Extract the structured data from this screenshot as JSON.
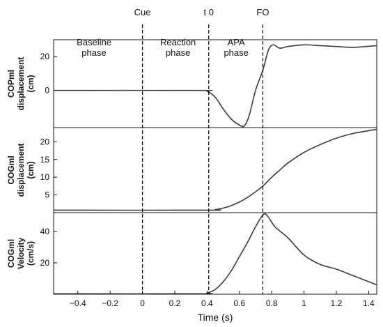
{
  "chart_data": {
    "type": "line",
    "xlabel": "Time (s)",
    "xlim": [
      -0.55,
      1.45
    ],
    "xticks": [
      -0.4,
      -0.2,
      0,
      0.2,
      0.4,
      0.6,
      0.8,
      1,
      1.2,
      1.4
    ],
    "xtick_labels": [
      "−0.4",
      "−0.2",
      "0",
      "0.2",
      "0.4",
      "0.6",
      "0.8",
      "1",
      "1.2",
      "1.4"
    ],
    "events": [
      {
        "label": "Cue",
        "x": 0
      },
      {
        "label": "t 0",
        "x": 0.41
      },
      {
        "label": "FO",
        "x": 0.745
      }
    ],
    "phases": [
      {
        "lines": [
          "Baseline",
          "phase"
        ],
        "x": -0.3
      },
      {
        "lines": [
          "Reaction",
          "phase"
        ],
        "x": 0.22
      },
      {
        "lines": [
          "APA",
          "phase"
        ],
        "x": 0.58
      }
    ],
    "panels": [
      {
        "ylabel": [
          "COPml",
          "displacement",
          "(cm)"
        ],
        "ylim": [
          -22,
          30
        ],
        "yticks": [
          0,
          20
        ],
        "x": [
          -0.55,
          0.35,
          0.4,
          0.45,
          0.5,
          0.55,
          0.6,
          0.63,
          0.66,
          0.7,
          0.745,
          0.78,
          0.81,
          0.85,
          0.9,
          1.0,
          1.1,
          1.2,
          1.3,
          1.45
        ],
        "y": [
          0,
          0,
          -0.5,
          -4,
          -11,
          -17,
          -20.5,
          -21,
          -15,
          0,
          12,
          24,
          27,
          25,
          26,
          27,
          26.5,
          26,
          25.5,
          26.5
        ]
      },
      {
        "ylabel": [
          "COGml",
          "displacement",
          "(cm)"
        ],
        "ylim": [
          0,
          24
        ],
        "yticks": [
          5,
          10,
          15,
          20
        ],
        "x": [
          -0.55,
          0.4,
          0.45,
          0.5,
          0.55,
          0.6,
          0.65,
          0.7,
          0.745,
          0.8,
          0.85,
          0.9,
          1.0,
          1.1,
          1.2,
          1.3,
          1.45
        ],
        "y": [
          0.7,
          0.7,
          0.85,
          1.3,
          2.0,
          3.0,
          4.3,
          5.9,
          7.5,
          10.0,
          12.0,
          14.0,
          17.0,
          19.2,
          21.0,
          22.3,
          23.5
        ]
      },
      {
        "ylabel": [
          "COGml",
          "Velocity",
          "(cm/s)"
        ],
        "ylim": [
          0,
          52
        ],
        "yticks": [
          20,
          40
        ],
        "x": [
          -0.55,
          0.35,
          0.4,
          0.45,
          0.5,
          0.55,
          0.6,
          0.65,
          0.7,
          0.75,
          0.78,
          0.82,
          0.9,
          1.0,
          1.1,
          1.2,
          1.3,
          1.45
        ],
        "y": [
          0.3,
          0.3,
          0.8,
          3,
          8,
          15,
          24,
          33,
          43,
          51,
          49,
          43,
          36,
          25,
          19,
          16,
          12,
          6
        ]
      }
    ]
  }
}
